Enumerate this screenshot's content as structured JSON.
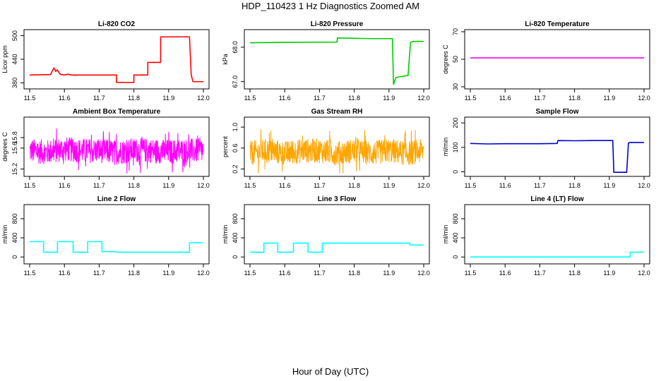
{
  "title": "HDP_110423  1 Hz Diagnostics Zoomed AM",
  "xlabel": "Hour of Day (UTC)",
  "colors": {
    "co2": "#ff0000",
    "pressure": "#00cc00",
    "temperature": "#ff00ff",
    "ambient": "#ff00ff",
    "rh": "#ffa500",
    "sample_flow": "#0000cc",
    "line_flow": "#00ffff"
  },
  "chart_data": [
    {
      "type": "line",
      "title": "Li-820 CO2",
      "ylabel": "Licor ppm",
      "xlim": [
        11.5,
        12.0
      ],
      "ylim": [
        370,
        510
      ],
      "xticks": [
        "11.5",
        "11.6",
        "11.7",
        "11.8",
        "11.9",
        "12.0"
      ],
      "yticks": [
        "380",
        "440",
        "500"
      ],
      "series": [
        {
          "color": "#ff0000",
          "x": [
            11.5,
            11.56,
            11.565,
            11.57,
            11.575,
            11.58,
            11.585,
            11.59,
            11.6,
            11.61,
            11.62,
            11.65,
            11.7,
            11.75,
            11.75,
            11.8,
            11.8,
            11.84,
            11.84,
            11.877,
            11.877,
            11.96,
            11.965,
            11.97,
            12.0
          ],
          "y": [
            400,
            401,
            410,
            418,
            409,
            413,
            405,
            401,
            400,
            402,
            400,
            400,
            400,
            400,
            381,
            381,
            400,
            400,
            432,
            432,
            497,
            497,
            400,
            383,
            383
          ]
        }
      ]
    },
    {
      "type": "line",
      "title": "Li-820 Pressure",
      "ylabel": "kPa",
      "xlim": [
        11.5,
        12.0
      ],
      "ylim": [
        66.85,
        68.45
      ],
      "xticks": [
        "11.5",
        "11.6",
        "11.7",
        "11.8",
        "11.9",
        "12.0"
      ],
      "yticks": [
        "67.0",
        "68.0"
      ],
      "series": [
        {
          "color": "#00cc00",
          "x": [
            11.5,
            11.6,
            11.75,
            11.752,
            11.85,
            11.91,
            11.913,
            11.92,
            11.93,
            11.955,
            11.962,
            11.97,
            12.0
          ],
          "y": [
            68.13,
            68.14,
            68.15,
            68.27,
            68.25,
            68.25,
            66.92,
            67.12,
            67.14,
            67.18,
            68.14,
            68.17,
            68.17
          ]
        }
      ]
    },
    {
      "type": "line",
      "title": "Li-820 Temperature",
      "ylabel": "degrees C",
      "xlim": [
        11.5,
        12.0
      ],
      "ylim": [
        30,
        70
      ],
      "xticks": [
        "11.5",
        "11.6",
        "11.7",
        "11.8",
        "11.9",
        "12.0"
      ],
      "yticks": [
        "30",
        "50",
        "70"
      ],
      "series": [
        {
          "color": "#ff00ff",
          "x": [
            11.5,
            12.0
          ],
          "y": [
            51,
            51
          ]
        }
      ]
    },
    {
      "type": "line",
      "title": "Ambient Box Temperature",
      "ylabel": "degrees C",
      "xlim": [
        11.5,
        12.0
      ],
      "ylim": [
        15.1,
        16.15
      ],
      "xticks": [
        "11.5",
        "11.6",
        "11.7",
        "11.8",
        "11.9",
        "12.0"
      ],
      "yticks": [
        "15.2",
        "15.6",
        "15.8"
      ],
      "series": [
        {
          "color": "#ff00ff",
          "x": [
            11.5,
            11.55,
            11.6,
            11.65,
            11.7,
            11.75,
            11.8,
            11.85,
            11.9,
            11.95,
            12.0
          ],
          "y": [
            15.55,
            15.52,
            15.58,
            15.55,
            15.55,
            15.52,
            15.56,
            15.55,
            15.53,
            15.55,
            15.55
          ],
          "noise": true
        }
      ]
    },
    {
      "type": "line",
      "title": "Gas Stream RH",
      "ylabel": "percent",
      "xlim": [
        11.5,
        12.0
      ],
      "ylim": [
        0.1,
        1.15
      ],
      "xticks": [
        "11.5",
        "11.6",
        "11.7",
        "11.8",
        "11.9",
        "12.0"
      ],
      "yticks": [
        "0.2",
        "0.6",
        "1.0"
      ],
      "series": [
        {
          "color": "#ffa500",
          "x": [
            11.5,
            11.55,
            11.6,
            11.65,
            11.7,
            11.75,
            11.8,
            11.85,
            11.9,
            11.95,
            12.0
          ],
          "y": [
            0.5,
            0.55,
            0.5,
            0.55,
            0.55,
            0.5,
            0.55,
            0.5,
            0.55,
            0.5,
            0.55
          ],
          "noise": true
        }
      ]
    },
    {
      "type": "line",
      "title": "Sample Flow",
      "ylabel": "ml/min",
      "xlim": [
        11.5,
        12.0
      ],
      "ylim": [
        -10,
        215
      ],
      "xticks": [
        "11.5",
        "11.6",
        "11.7",
        "11.8",
        "11.9",
        "12.0"
      ],
      "yticks": [
        "0",
        "100",
        "200"
      ],
      "series": [
        {
          "color": "#0000cc",
          "x": [
            11.5,
            11.55,
            11.6,
            11.7,
            11.75,
            11.752,
            11.8,
            11.85,
            11.91,
            11.913,
            11.95,
            11.955,
            11.96,
            12.0
          ],
          "y": [
            116,
            114,
            115,
            115,
            116,
            128,
            127,
            128,
            128,
            -2,
            -2,
            118,
            120,
            120
          ]
        }
      ]
    },
    {
      "type": "line",
      "title": "Line 2 Flow",
      "ylabel": "ml/min",
      "xlim": [
        11.5,
        12.0
      ],
      "ylim": [
        -100,
        1050
      ],
      "xticks": [
        "11.5",
        "11.6",
        "11.7",
        "11.8",
        "11.9",
        "12.0"
      ],
      "yticks": [
        "0",
        "400",
        "800"
      ],
      "series": [
        {
          "color": "#00ffff",
          "x": [
            11.5,
            11.54,
            11.54,
            11.58,
            11.58,
            11.625,
            11.625,
            11.667,
            11.667,
            11.708,
            11.708,
            11.75,
            11.75,
            11.96,
            11.96,
            12.0
          ],
          "y": [
            320,
            320,
            100,
            100,
            320,
            320,
            100,
            100,
            320,
            320,
            110,
            110,
            100,
            100,
            300,
            300
          ]
        }
      ]
    },
    {
      "type": "line",
      "title": "Line 3 Flow",
      "ylabel": "ml/min",
      "xlim": [
        11.5,
        12.0
      ],
      "ylim": [
        -100,
        1050
      ],
      "xticks": [
        "11.5",
        "11.6",
        "11.7",
        "11.8",
        "11.9",
        "12.0"
      ],
      "yticks": [
        "0",
        "400",
        "800"
      ],
      "series": [
        {
          "color": "#00ffff",
          "x": [
            11.5,
            11.54,
            11.54,
            11.58,
            11.58,
            11.625,
            11.625,
            11.667,
            11.667,
            11.708,
            11.708,
            11.96,
            11.96,
            12.0
          ],
          "y": [
            100,
            100,
            290,
            290,
            100,
            100,
            290,
            290,
            100,
            100,
            290,
            290,
            250,
            250
          ]
        }
      ]
    },
    {
      "type": "line",
      "title": "Line 4 (LT) Flow",
      "ylabel": "ml/min",
      "xlim": [
        11.5,
        12.0
      ],
      "ylim": [
        -100,
        1050
      ],
      "xticks": [
        "11.5",
        "11.6",
        "11.7",
        "11.8",
        "11.9",
        "12.0"
      ],
      "yticks": [
        "0",
        "400",
        "800"
      ],
      "series": [
        {
          "color": "#00ffff",
          "x": [
            11.5,
            11.96,
            11.96,
            12.0
          ],
          "y": [
            0,
            0,
            100,
            100
          ]
        }
      ]
    }
  ]
}
